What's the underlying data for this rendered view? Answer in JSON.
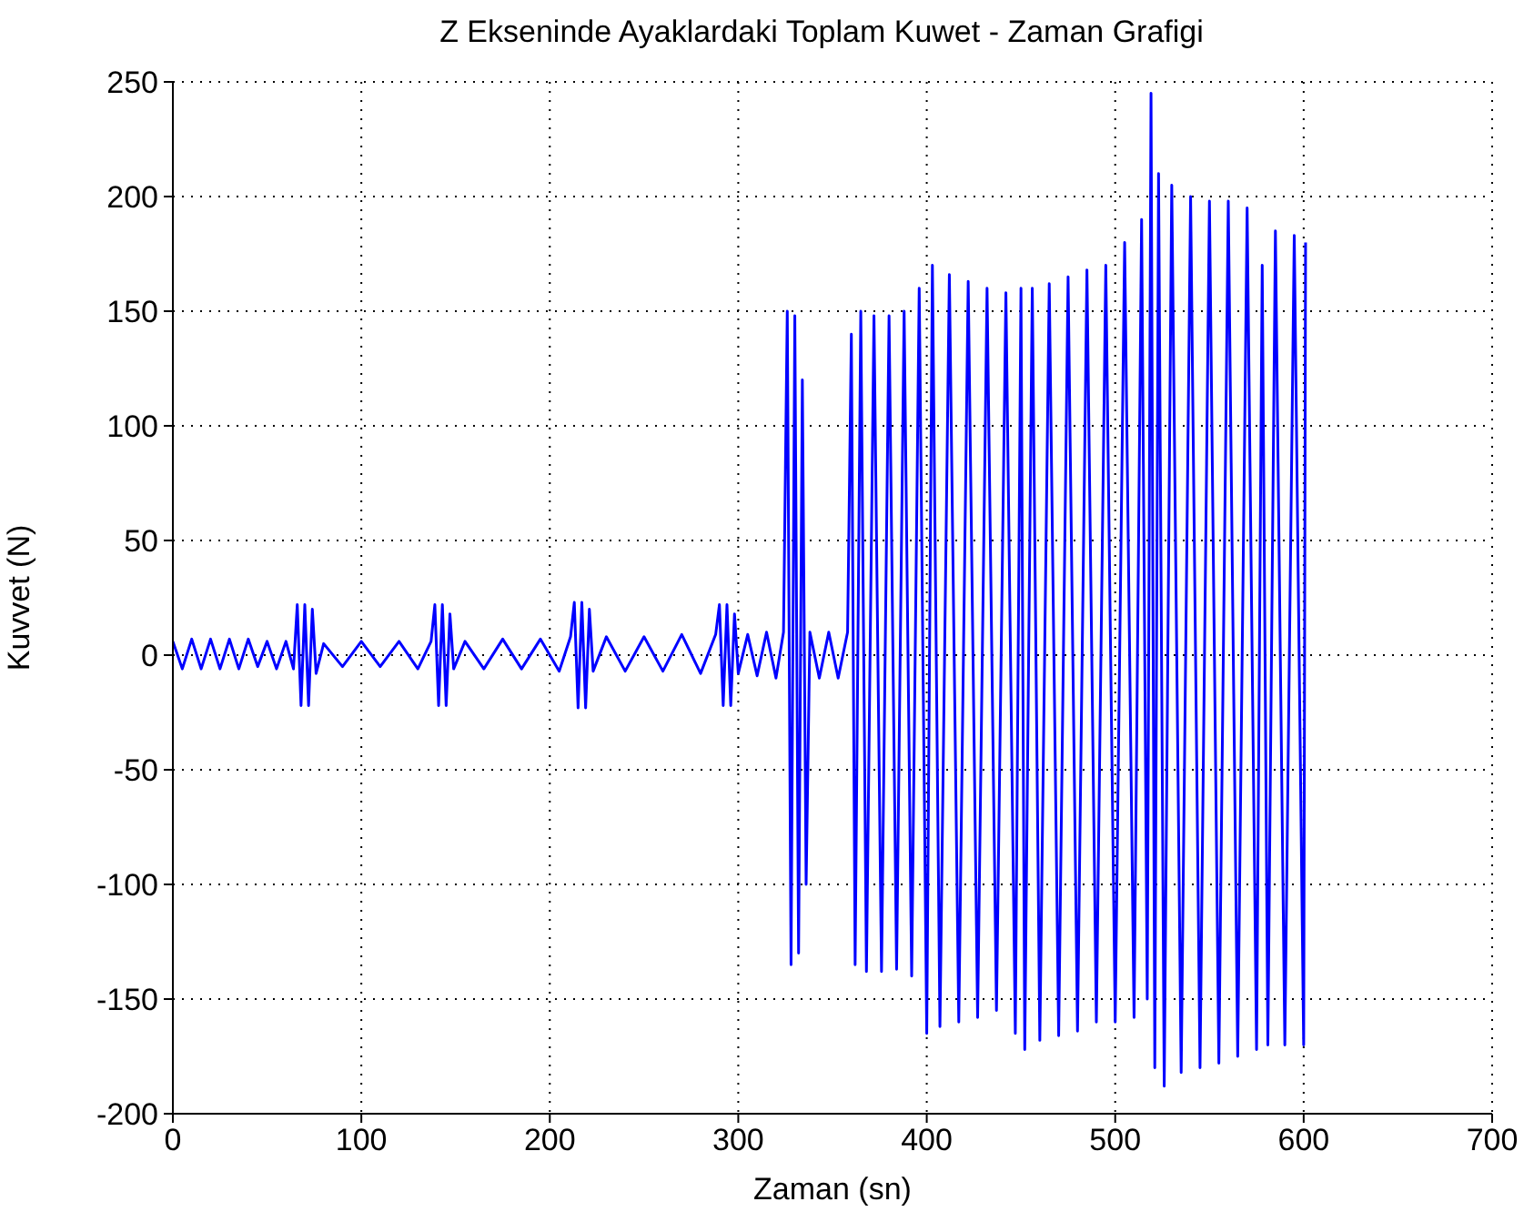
{
  "chart_data": {
    "type": "line",
    "title": "Z Ekseninde Ayaklardaki Toplam Kuwet - Zaman Grafigi",
    "xlabel": "Zaman (sn)",
    "ylabel": "Kuvvet (N)",
    "x": [
      0,
      5,
      10,
      15,
      20,
      25,
      30,
      35,
      40,
      45,
      50,
      55,
      60,
      64,
      66,
      68,
      70,
      72,
      74,
      76,
      80,
      90,
      100,
      110,
      120,
      130,
      137,
      139,
      141,
      143,
      145,
      147,
      149,
      155,
      165,
      175,
      185,
      195,
      205,
      211,
      213,
      215,
      217,
      219,
      221,
      223,
      230,
      240,
      250,
      260,
      270,
      280,
      288,
      290,
      292,
      294,
      296,
      298,
      300,
      305,
      310,
      315,
      320,
      324,
      326,
      328,
      330,
      332,
      334,
      336,
      338,
      343,
      348,
      353,
      358,
      360,
      362,
      365,
      368,
      372,
      376,
      380,
      384,
      388,
      392,
      396,
      400,
      403,
      407,
      412,
      417,
      422,
      427,
      432,
      437,
      442,
      447,
      450,
      452,
      456,
      460,
      465,
      470,
      475,
      480,
      485,
      490,
      495,
      500,
      505,
      510,
      514,
      517,
      519,
      521,
      523,
      526,
      530,
      535,
      540,
      545,
      550,
      555,
      560,
      565,
      570,
      575,
      578,
      581,
      585,
      590,
      595,
      600,
      601
    ],
    "values": [
      6,
      -6,
      7,
      -6,
      7,
      -6,
      7,
      -6,
      7,
      -5,
      6,
      -6,
      6,
      -6,
      22,
      -22,
      22,
      -22,
      20,
      -8,
      5,
      -5,
      6,
      -5,
      6,
      -6,
      6,
      22,
      -22,
      22,
      -22,
      18,
      -6,
      6,
      -6,
      7,
      -6,
      7,
      -7,
      8,
      23,
      -23,
      23,
      -23,
      20,
      -7,
      8,
      -7,
      8,
      -7,
      9,
      -8,
      9,
      22,
      -22,
      22,
      -22,
      18,
      -8,
      9,
      -9,
      10,
      -10,
      10,
      150,
      -135,
      148,
      -130,
      120,
      -100,
      10,
      -10,
      10,
      -10,
      10,
      140,
      -135,
      150,
      -138,
      148,
      -138,
      148,
      -137,
      150,
      -140,
      160,
      -165,
      170,
      -162,
      166,
      -160,
      163,
      -158,
      160,
      -155,
      158,
      -165,
      160,
      -172,
      160,
      -168,
      162,
      -166,
      165,
      -164,
      168,
      -160,
      170,
      -160,
      180,
      -158,
      190,
      -150,
      245,
      -180,
      210,
      -188,
      205,
      -182,
      200,
      -180,
      198,
      -178,
      198,
      -175,
      195,
      -172,
      170,
      -170,
      185,
      -170,
      183,
      -170,
      180
    ],
    "color": "#0000ff",
    "xlim": [
      0,
      700
    ],
    "xticks": [
      0,
      100,
      200,
      300,
      400,
      500,
      600,
      700
    ],
    "ylim": [
      -200,
      250
    ],
    "yticks": [
      -200,
      -150,
      -100,
      -50,
      0,
      50,
      100,
      150,
      200,
      250
    ],
    "grid": true
  }
}
